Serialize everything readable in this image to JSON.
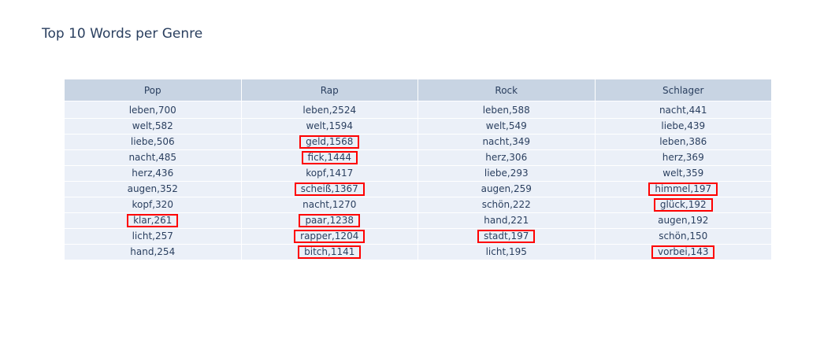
{
  "chart_data": {
    "type": "table",
    "title": "Top 10 Words per Genre",
    "columns": [
      "Pop",
      "Rap",
      "Rock",
      "Schlager"
    ],
    "rows": [
      [
        "leben,700",
        "leben,2524",
        "leben,588",
        "nacht,441"
      ],
      [
        "welt,582",
        "welt,1594",
        "welt,549",
        "liebe,439"
      ],
      [
        "liebe,506",
        "geld,1568",
        "nacht,349",
        "leben,386"
      ],
      [
        "nacht,485",
        "fick,1444",
        "herz,306",
        "herz,369"
      ],
      [
        "herz,436",
        "kopf,1417",
        "liebe,293",
        "welt,359"
      ],
      [
        "augen,352",
        "scheiß,1367",
        "augen,259",
        "himmel,197"
      ],
      [
        "kopf,320",
        "nacht,1270",
        "schön,222",
        "glück,192"
      ],
      [
        "klar,261",
        "paar,1238",
        "hand,221",
        "augen,192"
      ],
      [
        "licht,257",
        "rapper,1204",
        "stadt,197",
        "schön,150"
      ],
      [
        "hand,254",
        "bitch,1141",
        "licht,195",
        "vorbei,143"
      ]
    ],
    "highlighted_cells": [
      [
        2,
        1
      ],
      [
        3,
        1
      ],
      [
        5,
        1
      ],
      [
        7,
        1
      ],
      [
        8,
        1
      ],
      [
        9,
        1
      ],
      [
        7,
        0
      ],
      [
        8,
        2
      ],
      [
        5,
        3
      ],
      [
        6,
        3
      ],
      [
        9,
        3
      ]
    ],
    "colors": {
      "header_fill": "#c8d4e3",
      "cell_fill": "#ebf0f8",
      "text": "#2a3f5f",
      "highlight": "#ff0000"
    }
  }
}
